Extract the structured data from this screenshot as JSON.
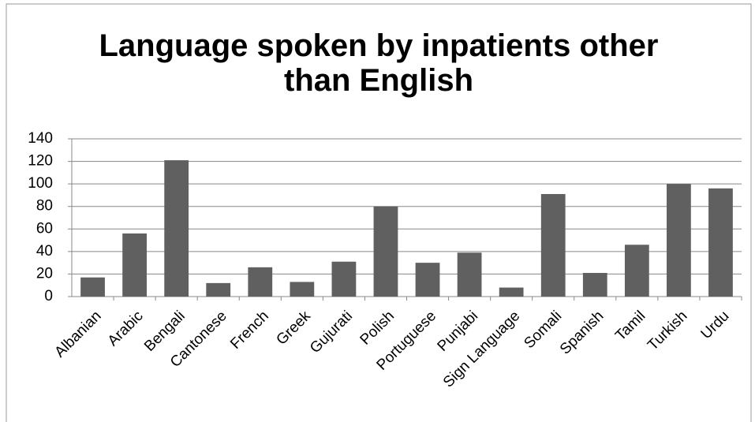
{
  "chart_data": {
    "type": "bar",
    "title": "Language spoken by inpatients other than English",
    "categories": [
      "Albanian",
      "Arabic",
      "Bengali",
      "Cantonese",
      "French",
      "Greek",
      "Gujurati",
      "Polish",
      "Portuguese",
      "Punjabi",
      "Sign Language",
      "Somali",
      "Spanish",
      "Tamil",
      "Turkish",
      "Urdu"
    ],
    "values": [
      17,
      56,
      121,
      12,
      26,
      13,
      31,
      80,
      30,
      39,
      8,
      91,
      21,
      46,
      100,
      96
    ],
    "color": "#606060",
    "ylim": [
      0,
      140
    ],
    "yticks": [
      0,
      20,
      40,
      60,
      80,
      100,
      120,
      140
    ],
    "grid": true
  }
}
